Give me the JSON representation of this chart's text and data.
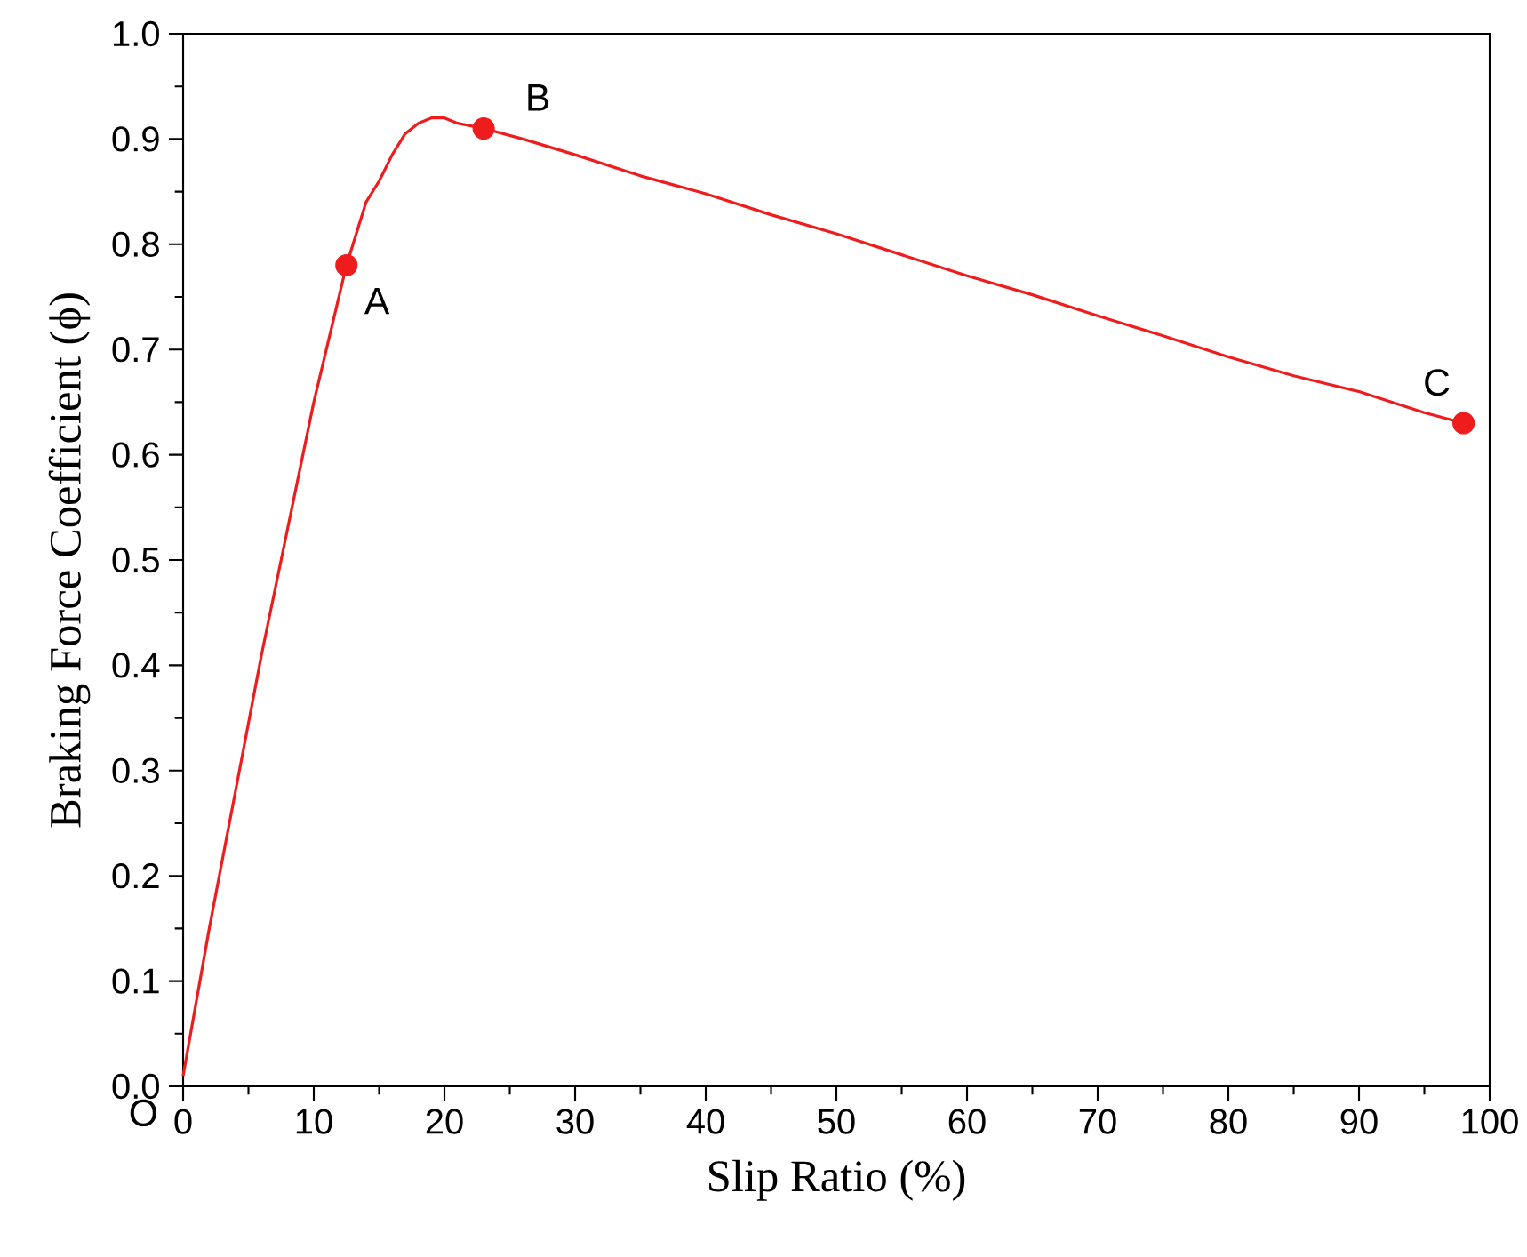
{
  "chart_data": {
    "type": "line",
    "xlabel": "Slip Ratio (%)",
    "ylabel": "Braking Force Coefficient (ϕ)",
    "xlim": [
      0,
      100
    ],
    "ylim": [
      0,
      1
    ],
    "xticks": [
      0,
      10,
      20,
      30,
      40,
      50,
      60,
      70,
      80,
      90,
      100
    ],
    "yticks": [
      {
        "value": 0,
        "label": "0.0"
      },
      0.1,
      0.2,
      0.3,
      0.4,
      0.5,
      0.6,
      0.7,
      0.8,
      0.9,
      {
        "value": 1,
        "label": "1.0"
      }
    ],
    "series": [
      {
        "color": "#ee1c1c",
        "marker": "none",
        "x": [
          0,
          2,
          4,
          6,
          8,
          10,
          12.5,
          14,
          15,
          16,
          17,
          18,
          19,
          20,
          21,
          23,
          26,
          30,
          35,
          40,
          45,
          50,
          55,
          60,
          65,
          70,
          75,
          80,
          85,
          90,
          95,
          98
        ],
        "values": [
          0.01,
          0.15,
          0.28,
          0.41,
          0.53,
          0.65,
          0.78,
          0.84,
          0.86,
          0.885,
          0.905,
          0.915,
          0.92,
          0.92,
          0.915,
          0.91,
          0.9,
          0.885,
          0.865,
          0.848,
          0.828,
          0.81,
          0.79,
          0.77,
          0.752,
          0.732,
          0.713,
          0.693,
          0.675,
          0.66,
          0.64,
          0.63
        ]
      },
      {
        "type": "scatter",
        "color": "#ee1c1c",
        "marker": "circle",
        "x": [
          12.5,
          23,
          98
        ],
        "values": [
          0.78,
          0.91,
          0.63
        ]
      }
    ],
    "annotations": [
      {
        "text": "A",
        "x": 12.5,
        "y": 0.78
      },
      {
        "text": "B",
        "x": 23,
        "y": 0.91
      },
      {
        "text": "C",
        "x": 98,
        "y": 0.63
      },
      "O"
    ]
  }
}
